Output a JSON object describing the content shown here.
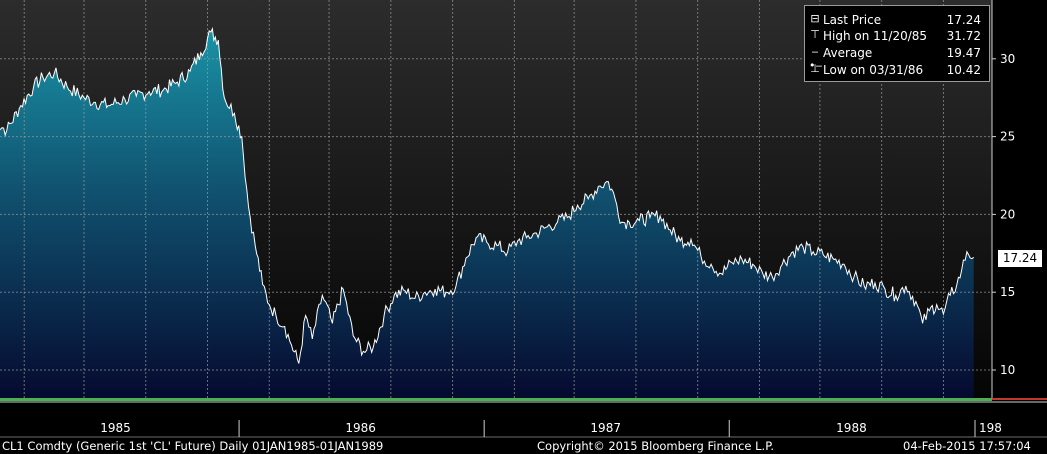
{
  "chart_data": {
    "type": "area",
    "ylim": [
      8,
      33
    ],
    "yticks": [
      10,
      15,
      20,
      25,
      30
    ],
    "x_start": "1985-01-01",
    "x_end": "1989-01-01",
    "x_year_labels": [
      "1985",
      "1986",
      "1987",
      "1988",
      "198"
    ],
    "grid": true,
    "legend_position": "top-right",
    "colors": {
      "area_top": "#1a8fa3",
      "area_bottom": "#050a2e",
      "line": "#ffffff",
      "bg_top": "#2a2a2a",
      "bg_bottom": "#000000"
    },
    "series": [
      {
        "x": [
          "1985-01-01",
          "1985-01-20",
          "1985-02-10",
          "1985-03-01",
          "1985-03-15",
          "1985-04-01",
          "1985-04-20",
          "1985-05-15",
          "1985-06-01",
          "1985-06-20",
          "1985-07-15",
          "1985-08-01",
          "1985-08-20",
          "1985-09-10",
          "1985-10-01",
          "1985-10-20",
          "1985-11-05",
          "1985-11-20",
          "1985-12-01",
          "1985-12-10",
          "1985-12-25",
          "1986-01-05",
          "1986-01-15",
          "1986-01-25",
          "1986-02-05",
          "1986-02-15",
          "1986-02-25",
          "1986-03-10",
          "1986-03-20",
          "1986-03-31",
          "1986-04-10",
          "1986-04-20",
          "1986-05-05",
          "1986-05-20",
          "1986-06-05",
          "1986-06-20",
          "1986-07-05",
          "1986-07-20",
          "1986-08-05",
          "1986-08-20",
          "1986-09-05",
          "1986-09-20",
          "1986-10-05",
          "1986-10-20",
          "1986-11-05",
          "1986-11-20",
          "1986-12-05",
          "1986-12-20",
          "1987-01-05",
          "1987-01-20",
          "1987-02-05",
          "1987-02-20",
          "1987-03-05",
          "1987-03-20",
          "1987-04-05",
          "1987-04-20",
          "1987-05-05",
          "1987-05-20",
          "1987-06-05",
          "1987-06-20",
          "1987-07-05",
          "1987-07-15",
          "1987-07-25",
          "1987-08-05",
          "1987-08-20",
          "1987-09-05",
          "1987-09-20",
          "1987-10-05",
          "1987-10-20",
          "1987-11-05",
          "1987-11-20",
          "1987-12-05",
          "1987-12-20",
          "1988-01-05",
          "1988-01-20",
          "1988-02-05",
          "1988-02-20",
          "1988-03-05",
          "1988-03-20",
          "1988-04-05",
          "1988-04-20",
          "1988-05-05",
          "1988-05-20",
          "1988-06-05",
          "1988-06-20",
          "1988-07-05",
          "1988-07-20",
          "1988-08-05",
          "1988-08-20",
          "1988-09-05",
          "1988-09-20",
          "1988-10-05",
          "1988-10-15",
          "1988-10-25",
          "1988-11-05",
          "1988-11-15",
          "1988-11-25",
          "1988-12-05",
          "1988-12-12",
          "1988-12-20",
          "1988-12-30"
        ],
        "values": [
          26.0,
          25.4,
          27.0,
          28.2,
          28.8,
          29.1,
          28.2,
          27.5,
          27.2,
          27.0,
          27.4,
          27.6,
          27.9,
          28.0,
          28.5,
          29.2,
          30.4,
          31.72,
          31.2,
          27.5,
          26.5,
          25.0,
          20.5,
          18.0,
          15.5,
          14.2,
          13.5,
          12.8,
          11.6,
          10.42,
          13.5,
          12.0,
          14.8,
          13.0,
          15.2,
          12.2,
          11.2,
          11.5,
          13.5,
          14.8,
          15.1,
          14.6,
          15.0,
          15.2,
          15.0,
          15.4,
          17.2,
          18.5,
          18.2,
          18.0,
          17.6,
          18.3,
          18.5,
          18.8,
          19.2,
          19.5,
          19.8,
          20.6,
          21.0,
          21.8,
          22.1,
          21.0,
          19.5,
          19.5,
          19.6,
          19.8,
          19.9,
          19.0,
          18.3,
          18.4,
          17.3,
          16.8,
          16.2,
          16.9,
          17.1,
          16.8,
          16.2,
          16.0,
          16.8,
          17.6,
          17.9,
          17.6,
          17.4,
          17.1,
          16.8,
          16.0,
          15.4,
          15.6,
          15.2,
          14.8,
          15.4,
          14.4,
          13.0,
          13.8,
          14.2,
          13.6,
          14.8,
          15.5,
          16.4,
          17.6,
          17.24
        ]
      }
    ]
  },
  "legend": {
    "rows": [
      {
        "label": "Last Price",
        "value": "17.24"
      },
      {
        "label": "High on 11/20/85",
        "value": "31.72"
      },
      {
        "label": "Average",
        "value": "19.47"
      },
      {
        "label": "Low on 03/31/86",
        "value": "10.42"
      }
    ]
  },
  "last_price_tag": "17.24",
  "footer": {
    "left": "CL1 Comdty (Generic 1st 'CL' Future)  Daily 01JAN1985-01JAN1989",
    "center": "Copyright© 2015 Bloomberg Finance L.P.",
    "right": "04-Feb-2015 17:57:04"
  }
}
